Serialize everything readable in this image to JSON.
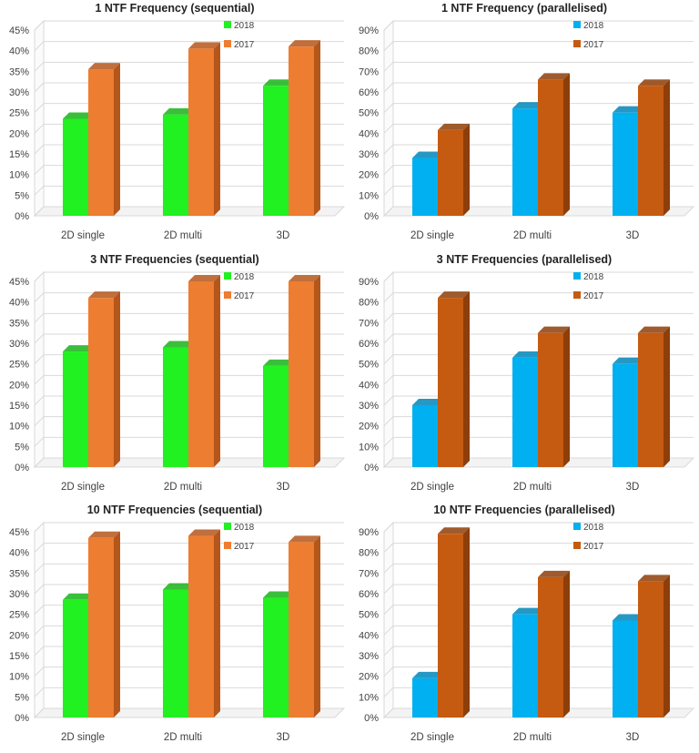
{
  "chart_data": [
    {
      "type": "bar",
      "title": "1 NTF Frequency (sequential)",
      "categories": [
        "2D single",
        "2D multi",
        "3D"
      ],
      "series": [
        {
          "name": "2018",
          "values": [
            23.5,
            24.5,
            31.5
          ],
          "color": "#21f021",
          "side": "#17b417"
        },
        {
          "name": "2017",
          "values": [
            35.5,
            40.5,
            41.0
          ],
          "color": "#ed7d31",
          "side": "#b5561b"
        }
      ],
      "ylim": [
        0,
        45
      ],
      "yticks": [
        0,
        5,
        10,
        15,
        20,
        25,
        30,
        35,
        40,
        45
      ],
      "tick_suffix": "%",
      "xlabel": "",
      "ylabel": "",
      "legend": "top-right"
    },
    {
      "type": "bar",
      "title": "1 NTF Frequency (parallelised)",
      "categories": [
        "2D single",
        "2D multi",
        "3D"
      ],
      "series": [
        {
          "name": "2018",
          "values": [
            28,
            52,
            50
          ],
          "color": "#00b0f0",
          "side": "#0086b8"
        },
        {
          "name": "2017",
          "values": [
            41.5,
            66,
            63
          ],
          "color": "#c55a11",
          "side": "#8e3e08"
        }
      ],
      "ylim": [
        0,
        90
      ],
      "yticks": [
        0,
        10,
        20,
        30,
        40,
        50,
        60,
        70,
        80,
        90
      ],
      "tick_suffix": "%",
      "xlabel": "",
      "ylabel": "",
      "legend": "top-right"
    },
    {
      "type": "bar",
      "title": "3 NTF Frequencies (sequential)",
      "categories": [
        "2D single",
        "2D multi",
        "3D"
      ],
      "series": [
        {
          "name": "2018",
          "values": [
            28,
            29,
            24.5
          ],
          "color": "#21f021",
          "side": "#17b417"
        },
        {
          "name": "2017",
          "values": [
            41,
            45,
            45
          ],
          "color": "#ed7d31",
          "side": "#b5561b"
        }
      ],
      "ylim": [
        0,
        45
      ],
      "yticks": [
        0,
        5,
        10,
        15,
        20,
        25,
        30,
        35,
        40,
        45
      ],
      "tick_suffix": "%",
      "xlabel": "",
      "ylabel": "",
      "legend": "top-right"
    },
    {
      "type": "bar",
      "title": "3 NTF Frequencies (parallelised)",
      "categories": [
        "2D single",
        "2D multi",
        "3D"
      ],
      "series": [
        {
          "name": "2018",
          "values": [
            30,
            53,
            50
          ],
          "color": "#00b0f0",
          "side": "#0086b8"
        },
        {
          "name": "2017",
          "values": [
            82,
            65,
            65
          ],
          "color": "#c55a11",
          "side": "#8e3e08"
        }
      ],
      "ylim": [
        0,
        90
      ],
      "yticks": [
        0,
        10,
        20,
        30,
        40,
        50,
        60,
        70,
        80,
        90
      ],
      "tick_suffix": "%",
      "xlabel": "",
      "ylabel": "",
      "legend": "top-right"
    },
    {
      "type": "bar",
      "title": "10 NTF Frequencies (sequential)",
      "categories": [
        "2D single",
        "2D multi",
        "3D"
      ],
      "series": [
        {
          "name": "2018",
          "values": [
            28.5,
            31,
            29
          ],
          "color": "#21f021",
          "side": "#17b417"
        },
        {
          "name": "2017",
          "values": [
            43.5,
            44,
            42.5
          ],
          "color": "#ed7d31",
          "side": "#b5561b"
        }
      ],
      "ylim": [
        0,
        45
      ],
      "yticks": [
        0,
        5,
        10,
        15,
        20,
        25,
        30,
        35,
        40,
        45
      ],
      "tick_suffix": "%",
      "xlabel": "",
      "ylabel": "",
      "legend": "top-right"
    },
    {
      "type": "bar",
      "title": "10 NTF Frequencies (parallelised)",
      "categories": [
        "2D single",
        "2D multi",
        "3D"
      ],
      "series": [
        {
          "name": "2018",
          "values": [
            19,
            50,
            47
          ],
          "color": "#00b0f0",
          "side": "#0086b8"
        },
        {
          "name": "2017",
          "values": [
            89,
            68,
            66
          ],
          "color": "#c55a11",
          "side": "#8e3e08"
        }
      ],
      "ylim": [
        0,
        90
      ],
      "yticks": [
        0,
        10,
        20,
        30,
        40,
        50,
        60,
        70,
        80,
        90
      ],
      "tick_suffix": "%",
      "xlabel": "",
      "ylabel": "",
      "legend": "top-right"
    }
  ]
}
